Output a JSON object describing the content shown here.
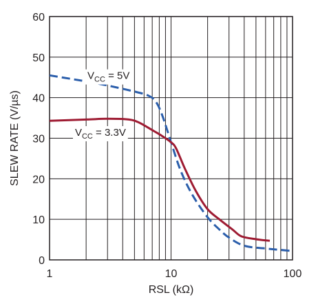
{
  "chart_data": {
    "type": "line",
    "xlabel": "RSL (kΩ)",
    "ylabel": "SLEW RATE (V/µs)",
    "xscale": "log",
    "xlim": [
      1,
      100
    ],
    "ylim": [
      0,
      60
    ],
    "x_ticks": [
      "1",
      "10",
      "100"
    ],
    "y_ticks": [
      "0",
      "10",
      "20",
      "30",
      "40",
      "50",
      "60"
    ],
    "grid": true,
    "series": [
      {
        "name": "VCC = 5V",
        "color": "#2b5eab",
        "style": "dashed",
        "points": [
          [
            1,
            45.5
          ],
          [
            2,
            44.0
          ],
          [
            3,
            43.0
          ],
          [
            5,
            41.5
          ],
          [
            6.5,
            40.5
          ],
          [
            7.5,
            39.0
          ],
          [
            8.5,
            35.5
          ],
          [
            10,
            29.0
          ],
          [
            12,
            22.0
          ],
          [
            15,
            16.0
          ],
          [
            20,
            10.5
          ],
          [
            25,
            7.5
          ],
          [
            30,
            5.5
          ],
          [
            40,
            3.5
          ],
          [
            60,
            2.8
          ],
          [
            100,
            2.2
          ]
        ]
      },
      {
        "name": "VCC = 3.3V",
        "color": "#9e1b32",
        "style": "solid",
        "points": [
          [
            1,
            34.3
          ],
          [
            2,
            34.6
          ],
          [
            3,
            34.8
          ],
          [
            4.5,
            34.6
          ],
          [
            5.5,
            33.8
          ],
          [
            7,
            32.0
          ],
          [
            8.5,
            30.5
          ],
          [
            10,
            29.0
          ],
          [
            11,
            27.5
          ],
          [
            13,
            22.5
          ],
          [
            16,
            17.0
          ],
          [
            20,
            12.5
          ],
          [
            25,
            10.0
          ],
          [
            32,
            7.5
          ],
          [
            38,
            5.8
          ],
          [
            50,
            5.1
          ],
          [
            65,
            4.7
          ]
        ]
      }
    ],
    "annotations": [
      {
        "main": "V",
        "sub": "CC",
        "rest": " = 5V"
      },
      {
        "main": "V",
        "sub": "CC",
        "rest": " = 3.3V"
      }
    ]
  }
}
